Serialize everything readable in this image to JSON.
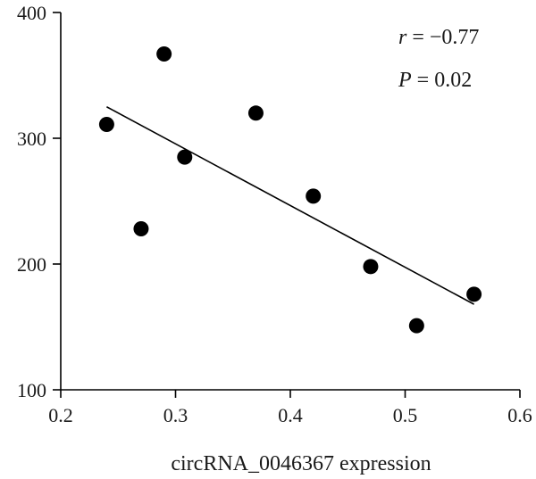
{
  "chart_data": {
    "type": "scatter",
    "title": "",
    "xlabel": "circRNA_0046367 expression",
    "ylabel": "",
    "xlim": [
      0.2,
      0.6
    ],
    "ylim": [
      100,
      400
    ],
    "x_ticks": [
      0.2,
      0.3,
      0.4,
      0.5,
      0.6
    ],
    "x_tick_labels": [
      "0.2",
      "0.3",
      "0.4",
      "0.5",
      "0.6"
    ],
    "y_ticks": [
      100,
      200,
      300,
      400
    ],
    "y_tick_labels": [
      "100",
      "200",
      "300",
      "400"
    ],
    "grid": false,
    "points": [
      {
        "x": 0.24,
        "y": 311
      },
      {
        "x": 0.27,
        "y": 228
      },
      {
        "x": 0.29,
        "y": 367
      },
      {
        "x": 0.308,
        "y": 285
      },
      {
        "x": 0.37,
        "y": 320
      },
      {
        "x": 0.42,
        "y": 254
      },
      {
        "x": 0.47,
        "y": 198
      },
      {
        "x": 0.51,
        "y": 151
      },
      {
        "x": 0.56,
        "y": 176
      }
    ],
    "fit_line": {
      "x": [
        0.24,
        0.56
      ],
      "y": [
        325,
        168
      ]
    },
    "annotations": {
      "r_symbol": "r",
      "r_value": " = −0.77",
      "p_symbol": "P",
      "p_value": " = 0.02"
    }
  }
}
